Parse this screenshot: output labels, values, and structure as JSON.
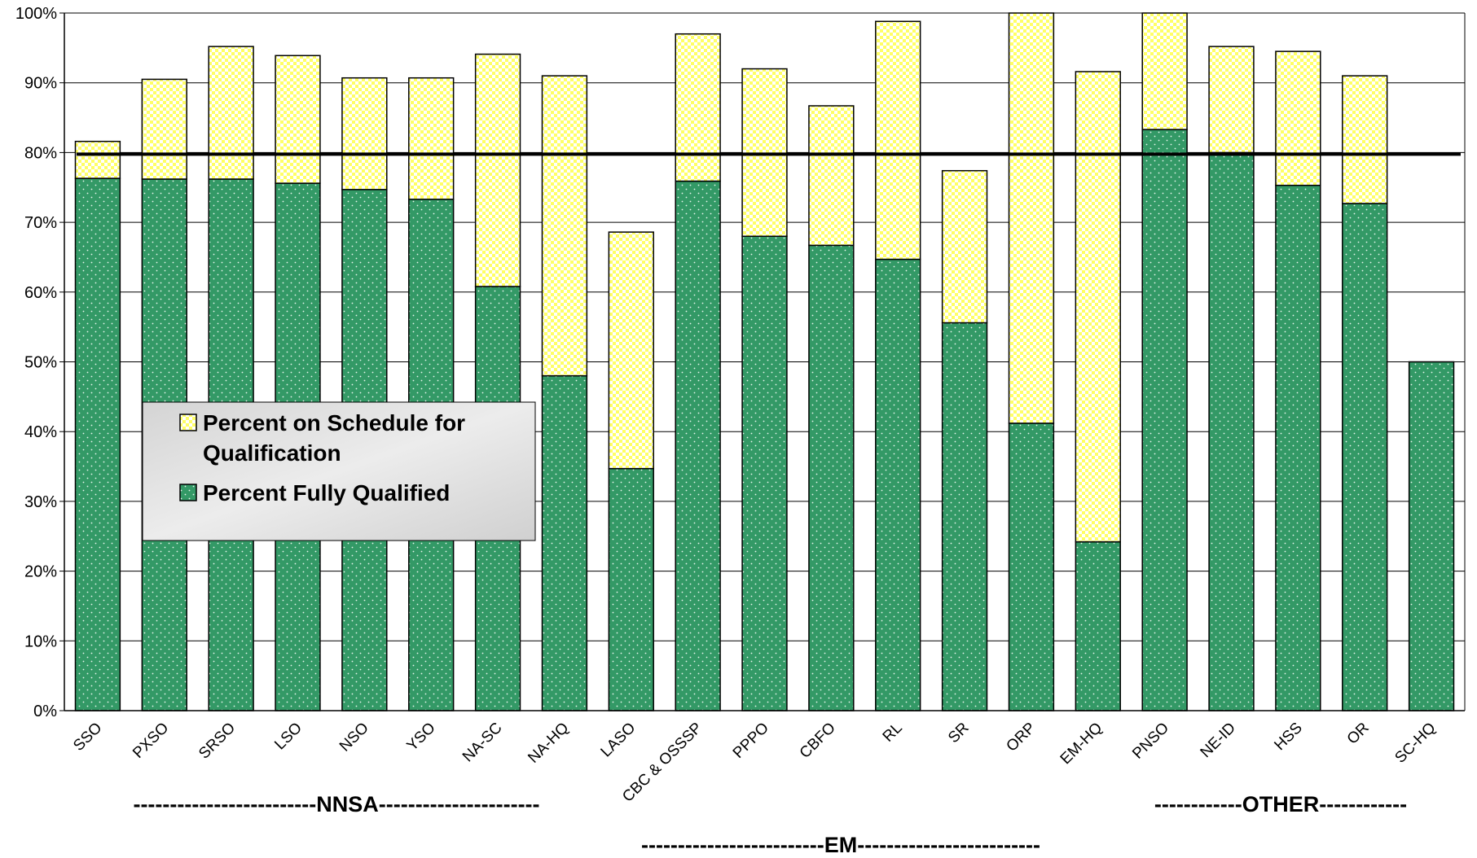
{
  "chart_data": {
    "type": "stacked-bar",
    "categories": [
      "SSO",
      "PXSO",
      "SRSO",
      "LSO",
      "NSO",
      "YSO",
      "NA-SC",
      "NA-HQ",
      "LASO",
      "CBC & OSSSP",
      "PPPO",
      "CBFO",
      "RL",
      "SR",
      "ORP",
      "EM-HQ",
      "PNSO",
      "NE-ID",
      "HSS",
      "OR",
      "SC-HQ"
    ],
    "series": [
      {
        "name": "Percent Fully Qualified",
        "color": "#339966",
        "values": [
          76.3,
          76.2,
          76.2,
          75.6,
          74.7,
          73.3,
          60.8,
          48.0,
          34.7,
          75.9,
          68.0,
          66.7,
          64.7,
          55.6,
          41.2,
          24.2,
          83.3,
          80.0,
          75.3,
          72.7,
          50.0
        ]
      },
      {
        "name": "Percent on Schedule for Qualification",
        "color": "#ffff66",
        "values": [
          5.3,
          14.3,
          19.0,
          18.3,
          16.0,
          17.4,
          33.3,
          43.0,
          33.9,
          21.1,
          24.0,
          20.0,
          34.1,
          21.8,
          58.8,
          67.4,
          16.7,
          15.2,
          19.2,
          18.3,
          0
        ]
      }
    ],
    "target_line": 80,
    "ylim": [
      0,
      100
    ],
    "yticks": [
      {
        "value": 0,
        "label": "0%"
      },
      {
        "value": 10,
        "label": "10%"
      },
      {
        "value": 20,
        "label": "20%"
      },
      {
        "value": 30,
        "label": "30%"
      },
      {
        "value": 40,
        "label": "40%"
      },
      {
        "value": 50,
        "label": "50%"
      },
      {
        "value": 60,
        "label": "60%"
      },
      {
        "value": 70,
        "label": "70%"
      },
      {
        "value": 80,
        "label": "80%"
      },
      {
        "value": 90,
        "label": "90%"
      },
      {
        "value": 100,
        "label": "100%"
      }
    ],
    "grid": true,
    "group_labels": [
      "-------------------------NNSA----------------------",
      "-------------------------EM-------------------------",
      "------------OTHER------------"
    ]
  }
}
